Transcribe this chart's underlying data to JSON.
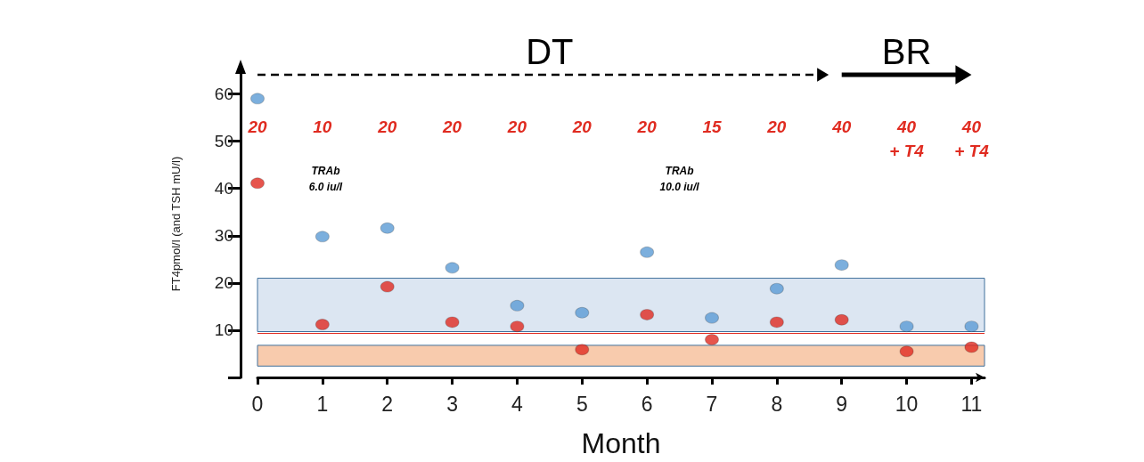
{
  "chart_data": {
    "type": "scatter",
    "xlabel": "Month",
    "ylabel": "FT4pmol/l (and TSH mU/l)",
    "x": [
      0,
      1,
      2,
      3,
      4,
      5,
      6,
      7,
      8,
      9,
      10,
      11
    ],
    "series": [
      {
        "color": "#5b9bd5",
        "values": [
          59,
          29.8,
          31.6,
          23.2,
          15.2,
          13.7,
          26.5,
          12.6,
          18.8,
          23.8,
          10.8,
          10.8
        ]
      },
      {
        "color": "#e02b20",
        "values": [
          41.1,
          11.2,
          19.2,
          11.7,
          10.8,
          5.9,
          13.3,
          8.0,
          11.7,
          12.2,
          5.5,
          6.4
        ]
      }
    ],
    "xlim": [
      0,
      11.2
    ],
    "xticks": [
      0,
      1,
      2,
      3,
      4,
      5,
      6,
      7,
      8,
      9,
      10,
      11
    ],
    "ylim": [
      0,
      65
    ],
    "yticks": [
      {
        "value": 0,
        "label": null
      },
      10,
      20,
      30,
      40,
      50,
      60
    ],
    "bands": [
      {
        "axis": "y",
        "from": 9.7,
        "to": 21,
        "color": "#dce6f2"
      },
      {
        "axis": "y",
        "from": 2.4,
        "to": 6.8,
        "color": "#f8cbad"
      }
    ],
    "ref_lines": [
      {
        "axis": "y",
        "value": 9.3,
        "color": "#e02b20"
      }
    ],
    "annotations": [
      "DT",
      "BR",
      "20",
      "10",
      "20",
      "20",
      "20",
      "20",
      "20",
      "15",
      "20",
      "40",
      "40\n+ T4",
      "40\n+ T4",
      "TRAb\n6.0 iu/l",
      "TRAb\n10.0 iu/l"
    ],
    "marker": "circle",
    "grid": false,
    "legend": false
  }
}
